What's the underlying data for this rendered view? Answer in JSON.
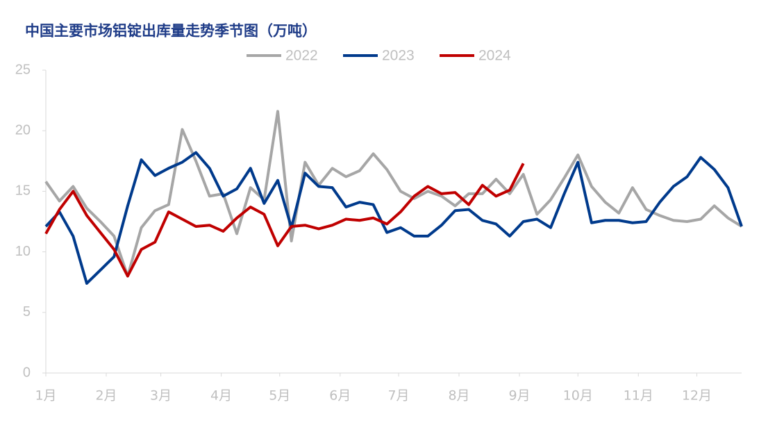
{
  "chart_data": {
    "type": "line",
    "title": "中国主要市场铝锭出库量走势季节图（万吨）",
    "x": [
      0,
      7,
      14,
      21,
      28,
      35,
      42,
      49,
      56,
      63,
      70,
      77,
      84,
      91,
      98,
      105,
      112,
      119,
      126,
      133,
      140,
      147,
      154,
      161,
      168,
      175,
      182,
      189,
      196,
      203,
      210,
      217,
      224,
      231,
      238,
      245,
      252,
      259,
      266,
      273,
      280,
      287,
      294,
      301,
      308,
      315,
      322,
      329,
      336,
      343,
      350,
      357
    ],
    "xlim": [
      0,
      357
    ],
    "xticks": [
      {
        "value": 0,
        "label": "1月"
      },
      {
        "value": 31,
        "label": "2月"
      },
      {
        "value": 59,
        "label": "3月"
      },
      {
        "value": 90,
        "label": "4月"
      },
      {
        "value": 120,
        "label": "5月"
      },
      {
        "value": 151,
        "label": "6月"
      },
      {
        "value": 181,
        "label": "7月"
      },
      {
        "value": 212,
        "label": "8月"
      },
      {
        "value": 243,
        "label": "9月"
      },
      {
        "value": 273,
        "label": "10月"
      },
      {
        "value": 304,
        "label": "11月"
      },
      {
        "value": 334,
        "label": "12月"
      }
    ],
    "ylim": [
      0,
      25
    ],
    "yticks": [
      0,
      5,
      10,
      15,
      20,
      25
    ],
    "grid": false,
    "legend": "top",
    "series": [
      {
        "name": "2022",
        "color": "#a6a6a6",
        "values": [
          15.8,
          14.2,
          15.4,
          13.6,
          12.5,
          11.3,
          8.0,
          12.0,
          13.4,
          13.9,
          20.1,
          17.5,
          14.6,
          14.8,
          11.5,
          15.3,
          14.3,
          21.6,
          10.9,
          17.4,
          15.5,
          16.9,
          16.2,
          16.7,
          18.1,
          16.8,
          15.0,
          14.4,
          15.0,
          14.6,
          13.8,
          14.8,
          14.8,
          16.0,
          14.8,
          16.4,
          13.1,
          14.3,
          16.1,
          18.0,
          15.4,
          14.1,
          13.2,
          15.3,
          13.5,
          13.0,
          12.6,
          12.5,
          12.7,
          13.8,
          12.8,
          12.1
        ]
      },
      {
        "name": "2023",
        "color": "#003a8c",
        "values": [
          12.1,
          13.3,
          11.3,
          7.4,
          8.5,
          9.6,
          13.8,
          17.6,
          16.3,
          16.9,
          17.4,
          18.2,
          16.9,
          14.6,
          15.2,
          16.9,
          14.0,
          15.9,
          12.0,
          16.5,
          15.4,
          15.3,
          13.7,
          14.1,
          13.9,
          11.6,
          12.0,
          11.3,
          11.3,
          12.2,
          13.4,
          13.5,
          12.6,
          12.3,
          11.3,
          12.5,
          12.7,
          12.0,
          14.8,
          17.4,
          12.4,
          12.6,
          12.6,
          12.4,
          12.5,
          14.1,
          15.4,
          16.2,
          17.8,
          16.8,
          15.3,
          12.1
        ]
      },
      {
        "name": "2024",
        "color": "#c00000",
        "values": [
          11.5,
          13.5,
          15.0,
          13.0,
          11.6,
          10.2,
          8.0,
          10.2,
          10.8,
          13.3,
          12.7,
          12.1,
          12.2,
          11.7,
          12.8,
          13.7,
          13.1,
          10.5,
          12.1,
          12.2,
          11.9,
          12.2,
          12.7,
          12.6,
          12.8,
          12.3,
          13.3,
          14.6,
          15.4,
          14.8,
          14.9,
          13.9,
          15.5,
          14.6,
          15.1,
          17.3,
          null,
          null,
          null,
          null,
          null,
          null,
          null,
          null,
          null,
          null,
          null,
          null,
          null,
          null,
          null,
          null
        ]
      }
    ]
  }
}
